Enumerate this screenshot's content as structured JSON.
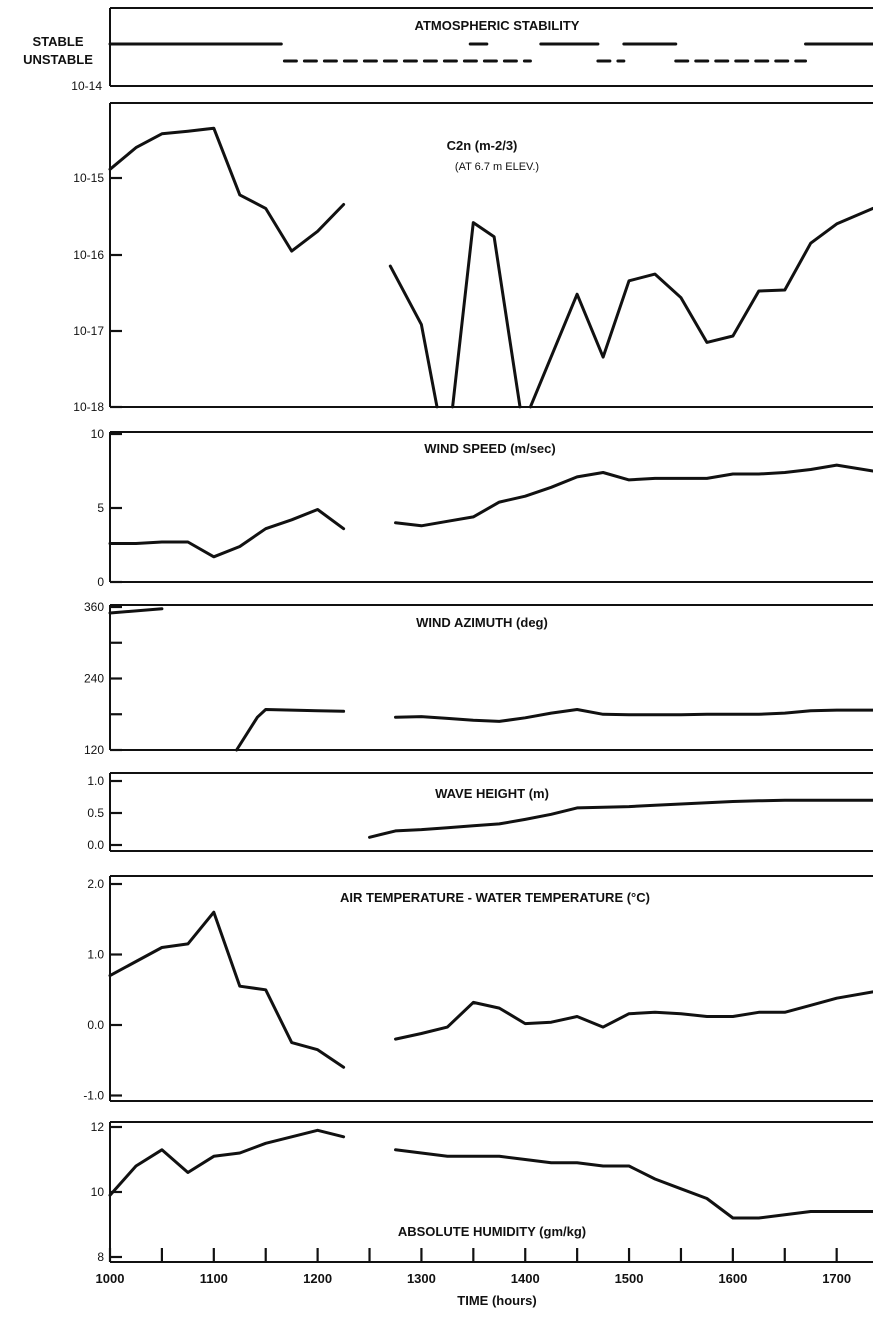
{
  "chart_data": [
    {
      "type": "line",
      "title": "ATMOSPHERIC STABILITY",
      "ylabels": [
        "STABLE",
        "UNSTABLE"
      ],
      "segments": [
        {
          "state": "STABLE",
          "x": [
            1000,
            1165
          ]
        },
        {
          "state": "STABLE",
          "x": [
            1347,
            1363
          ]
        },
        {
          "state": "STABLE",
          "x": [
            1415,
            1470
          ]
        },
        {
          "state": "STABLE",
          "x": [
            1495,
            1545
          ]
        },
        {
          "state": "STABLE",
          "x": [
            1670,
            1735
          ]
        },
        {
          "state": "UNSTABLE",
          "x": [
            1168,
            1405
          ]
        },
        {
          "state": "UNSTABLE",
          "x": [
            1470,
            1495
          ]
        },
        {
          "state": "UNSTABLE",
          "x": [
            1545,
            1670
          ]
        }
      ]
    },
    {
      "type": "line",
      "title": "C2n (m-2/3)",
      "subtitle": "(AT 6.7 m ELEV.)",
      "ylabel_top": "10-14",
      "ytick_labels": [
        "10-15",
        "10-16",
        "10-17",
        "10-18"
      ],
      "log_scale": true,
      "ylim": [
        1e-18,
        1e-14
      ],
      "series": [
        {
          "x": [
            1000,
            1025,
            1050,
            1075,
            1100,
            1125,
            1150,
            1175,
            1200,
            1225
          ],
          "y": [
            1.3e-15,
            2.5e-15,
            3.8e-15,
            4.1e-15,
            4.5e-15,
            6e-16,
            4e-16,
            1.1e-16,
            2e-16,
            4.5e-16
          ]
        },
        {
          "x": [
            1270,
            1300,
            1315
          ],
          "y": [
            7e-17,
            1.2e-17,
            1e-18
          ]
        },
        {
          "x": [
            1330,
            1350,
            1370,
            1395
          ],
          "y": [
            1e-18,
            2.6e-16,
            1.7e-16,
            1e-18
          ]
        },
        {
          "x": [
            1405,
            1450,
            1475,
            1500,
            1525,
            1550,
            1575,
            1600,
            1625,
            1650,
            1675,
            1700,
            1735
          ],
          "y": [
            1e-18,
            3e-17,
            4.5e-18,
            4.5e-17,
            5.5e-17,
            2.7e-17,
            7e-18,
            8.5e-18,
            3.3e-17,
            3.4e-17,
            1.4e-16,
            2.5e-16,
            4e-16
          ]
        }
      ]
    },
    {
      "type": "line",
      "title": "WIND SPEED (m/sec)",
      "ytick_labels": [
        "0",
        "5",
        "10"
      ],
      "ylim": [
        0,
        10
      ],
      "series": [
        {
          "x": [
            1000,
            1025,
            1050,
            1075,
            1100,
            1125,
            1150,
            1175,
            1200,
            1225
          ],
          "y": [
            2.6,
            2.6,
            2.7,
            2.7,
            1.7,
            2.4,
            3.6,
            4.2,
            4.9,
            3.6
          ]
        },
        {
          "x": [
            1275,
            1300,
            1325,
            1350,
            1375,
            1400,
            1425,
            1450,
            1475,
            1500,
            1525,
            1550,
            1575,
            1600,
            1625,
            1650,
            1675,
            1700,
            1735
          ],
          "y": [
            4.0,
            3.8,
            4.1,
            4.4,
            5.4,
            5.8,
            6.4,
            7.1,
            7.4,
            6.9,
            7.0,
            7.0,
            7.0,
            7.3,
            7.3,
            7.4,
            7.6,
            7.9,
            7.5
          ]
        }
      ]
    },
    {
      "type": "line",
      "title": "WIND AZIMUTH (deg)",
      "ytick_labels": [
        "120",
        "240",
        "360"
      ],
      "ylim": [
        120,
        360
      ],
      "series": [
        {
          "x": [
            1000,
            1050
          ],
          "y": [
            350,
            357
          ]
        },
        {
          "x": [
            1122,
            1142,
            1150,
            1175,
            1200,
            1225
          ],
          "y": [
            120,
            175,
            188,
            187,
            186,
            185
          ]
        },
        {
          "x": [
            1275,
            1300,
            1325,
            1350,
            1375,
            1400,
            1425,
            1450,
            1475,
            1500,
            1525,
            1550,
            1575,
            1600,
            1625,
            1650,
            1675,
            1700,
            1735
          ],
          "y": [
            175,
            176,
            173,
            170,
            168,
            174,
            182,
            188,
            180,
            179,
            179,
            179,
            180,
            180,
            180,
            182,
            186,
            187,
            187
          ]
        }
      ]
    },
    {
      "type": "line",
      "title": "WAVE HEIGHT (m)",
      "ytick_labels": [
        "0.0",
        "0.5",
        "1.0"
      ],
      "ylim": [
        0,
        1
      ],
      "series": [
        {
          "x": [
            1250,
            1275,
            1300,
            1325,
            1350,
            1375,
            1400,
            1425,
            1450,
            1475,
            1500,
            1525,
            1550,
            1575,
            1600,
            1625,
            1650,
            1675,
            1700,
            1735
          ],
          "y": [
            0.12,
            0.22,
            0.24,
            0.27,
            0.3,
            0.33,
            0.4,
            0.48,
            0.58,
            0.59,
            0.6,
            0.62,
            0.64,
            0.66,
            0.68,
            0.69,
            0.7,
            0.7,
            0.7,
            0.7
          ]
        }
      ]
    },
    {
      "type": "line",
      "title": "AIR TEMPERATURE - WATER TEMPERATURE (°C)",
      "ytick_labels": [
        "-1.0",
        "0.0",
        "1.0",
        "2.0"
      ],
      "ylim": [
        -1,
        2
      ],
      "series": [
        {
          "x": [
            1000,
            1025,
            1050,
            1075,
            1100,
            1125,
            1150,
            1175,
            1200,
            1225
          ],
          "y": [
            0.7,
            0.9,
            1.1,
            1.15,
            1.6,
            0.55,
            0.5,
            -0.25,
            -0.35,
            -0.6
          ]
        },
        {
          "x": [
            1275,
            1300,
            1325,
            1350,
            1375,
            1400,
            1425,
            1450,
            1475,
            1500,
            1525,
            1550,
            1575,
            1600,
            1625,
            1650,
            1675,
            1700,
            1735
          ],
          "y": [
            -0.2,
            -0.12,
            -0.03,
            0.32,
            0.24,
            0.02,
            0.04,
            0.12,
            -0.03,
            0.16,
            0.18,
            0.16,
            0.12,
            0.12,
            0.18,
            0.18,
            0.28,
            0.38,
            0.47
          ]
        }
      ]
    },
    {
      "type": "line",
      "title": "ABSOLUTE HUMIDITY (gm/kg)",
      "ytick_labels": [
        "8",
        "10",
        "12"
      ],
      "ylim": [
        8,
        12
      ],
      "xlabel": "TIME (hours)",
      "xtick_labels": [
        "1000",
        "1100",
        "1200",
        "1300",
        "1400",
        "1500",
        "1600",
        "1700"
      ],
      "xlim": [
        1000,
        1735
      ],
      "series": [
        {
          "x": [
            1000,
            1025,
            1050,
            1075,
            1100,
            1125,
            1150,
            1175,
            1200,
            1225
          ],
          "y": [
            9.9,
            10.8,
            11.3,
            10.6,
            11.1,
            11.2,
            11.5,
            11.7,
            11.9,
            11.7
          ]
        },
        {
          "x": [
            1275,
            1300,
            1325,
            1350,
            1375,
            1400,
            1425,
            1450,
            1475,
            1500,
            1525,
            1550,
            1575,
            1600,
            1625,
            1650,
            1675,
            1700,
            1735
          ],
          "y": [
            11.3,
            11.2,
            11.1,
            11.1,
            11.1,
            11.0,
            10.9,
            10.9,
            10.8,
            10.8,
            10.4,
            10.1,
            9.8,
            9.2,
            9.2,
            9.3,
            9.4,
            9.4,
            9.4
          ]
        }
      ]
    }
  ]
}
